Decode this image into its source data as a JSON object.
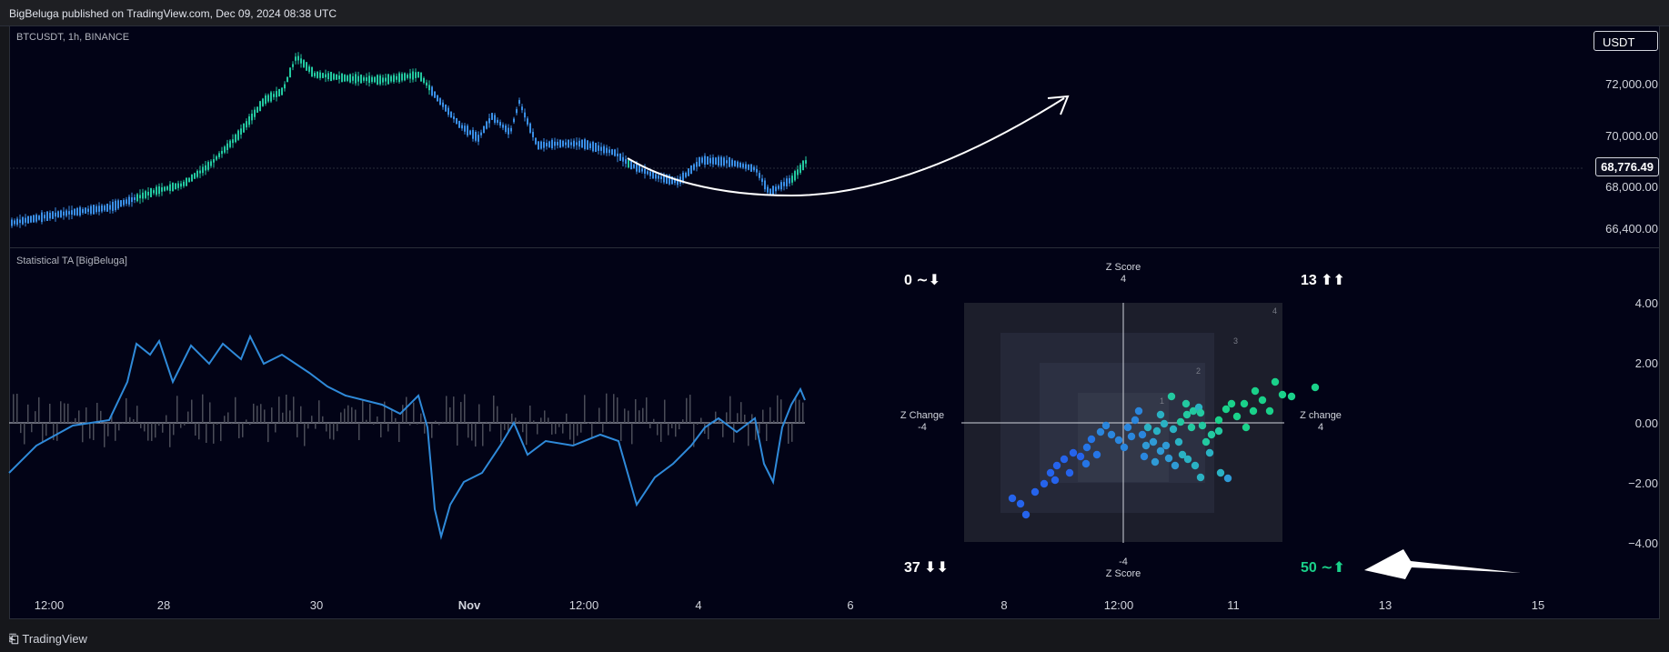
{
  "header": {
    "published": "BigBeluga published on TradingView.com, Dec 09, 2024 08:38 UTC"
  },
  "main_chart": {
    "symbol": "BTCUSDT, 1h, BINANCE",
    "currency_button": "USDT",
    "price_axis": [
      "72,000.00",
      "70,000.00",
      "68,000.00",
      "66,400.00"
    ],
    "current_price": "68,776.49"
  },
  "indicator": {
    "title": "Statistical TA [BigBeluga]",
    "y_axis": [
      "4.00",
      "2.00",
      "0.00",
      "−2.00",
      "−4.00"
    ],
    "quadrants": {
      "top_left": "0 ∼⬇",
      "top_right": "13 ⬆⬆",
      "bottom_left": "37 ⬇⬇",
      "bottom_right": "50 ∼⬆"
    },
    "axis_labels": {
      "top": [
        "Z Score",
        "4"
      ],
      "bottom": [
        "-4",
        "Z Score"
      ],
      "left": [
        "Z Change",
        "-4"
      ],
      "right": [
        "Z change",
        "4"
      ]
    },
    "box_levels": [
      "4",
      "3",
      "2",
      "1"
    ]
  },
  "time_axis": [
    "12:00",
    "28",
    "30",
    "Nov",
    "12:00",
    "4",
    "6",
    "8",
    "12:00",
    "11",
    "13",
    "15"
  ],
  "footer": {
    "brand": "TradingView"
  },
  "colors": {
    "bg": "#020316",
    "cyan": "#23c9a0",
    "blue": "#2f8ad9",
    "green": "#1ad18a",
    "white": "#ffffff"
  }
}
